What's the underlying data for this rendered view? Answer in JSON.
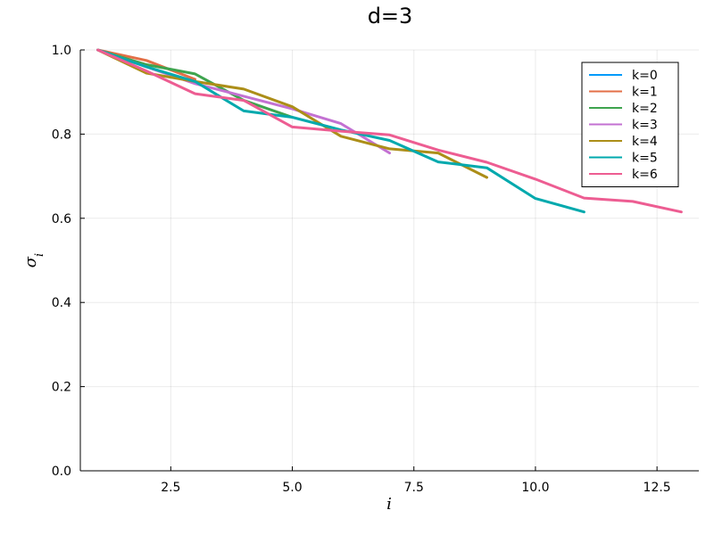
{
  "chart_data": {
    "type": "line",
    "title": "d=3",
    "xlabel": "i",
    "ylabel": "σ_i",
    "xlim": [
      0.64,
      13.36
    ],
    "ylim": [
      0,
      1
    ],
    "xticks": [
      2.5,
      5.0,
      7.5,
      10.0,
      12.5
    ],
    "xtick_labels": [
      "2.5",
      "5.0",
      "7.5",
      "10.0",
      "12.5"
    ],
    "yticks": [
      0.0,
      0.2,
      0.4,
      0.6,
      0.8,
      1.0
    ],
    "ytick_labels": [
      "0.0",
      "0.2",
      "0.4",
      "0.6",
      "0.8",
      "1.0"
    ],
    "grid": true,
    "legend_position": "top-right",
    "series": [
      {
        "name": "k=0",
        "color": "#009AFA",
        "x": [
          1
        ],
        "y": [
          1.0
        ]
      },
      {
        "name": "k=1",
        "color": "#E36F47",
        "x": [
          1,
          2,
          3
        ],
        "y": [
          1.0,
          0.975,
          0.93
        ]
      },
      {
        "name": "k=2",
        "color": "#3EA44E",
        "x": [
          1,
          2,
          3,
          4,
          5
        ],
        "y": [
          1.0,
          0.965,
          0.943,
          0.88,
          0.84
        ]
      },
      {
        "name": "k=3",
        "color": "#C371D2",
        "x": [
          1,
          2,
          3,
          4,
          5,
          6,
          7
        ],
        "y": [
          1.0,
          0.96,
          0.92,
          0.89,
          0.86,
          0.825,
          0.755
        ]
      },
      {
        "name": "k=4",
        "color": "#AC8E18",
        "x": [
          1,
          2,
          3,
          4,
          5,
          6,
          7,
          8,
          9
        ],
        "y": [
          1.0,
          0.945,
          0.925,
          0.907,
          0.865,
          0.795,
          0.765,
          0.755,
          0.697
        ]
      },
      {
        "name": "k=5",
        "color": "#00A9AD",
        "x": [
          1,
          2,
          3,
          4,
          5,
          6,
          7,
          8,
          9,
          10,
          11
        ],
        "y": [
          1.0,
          0.96,
          0.925,
          0.855,
          0.84,
          0.81,
          0.785,
          0.734,
          0.72,
          0.647,
          0.615
        ]
      },
      {
        "name": "k=6",
        "color": "#ED5D92",
        "x": [
          1,
          2,
          3,
          4,
          5,
          6,
          7,
          8,
          9,
          10,
          11,
          12,
          13
        ],
        "y": [
          1.0,
          0.95,
          0.896,
          0.88,
          0.817,
          0.807,
          0.798,
          0.762,
          0.733,
          0.693,
          0.648,
          0.64,
          0.615
        ]
      }
    ]
  }
}
